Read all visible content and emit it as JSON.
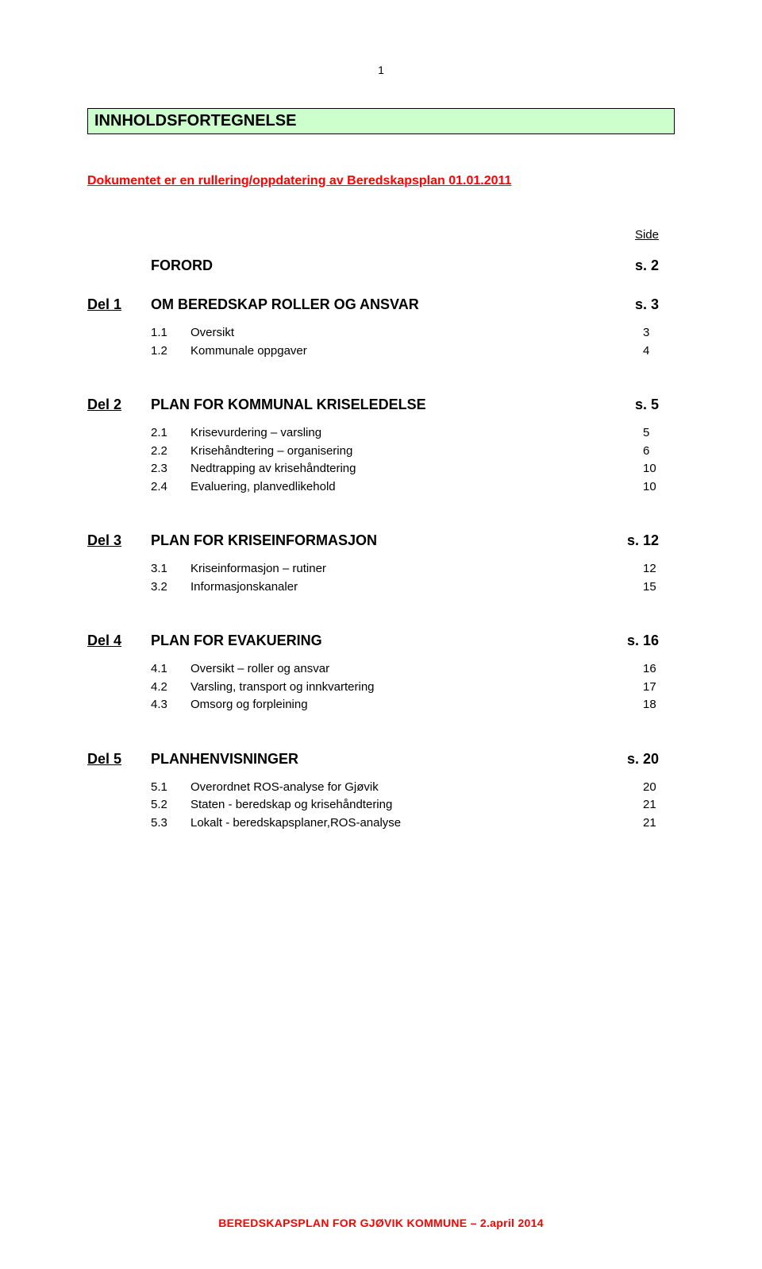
{
  "page_number": "1",
  "title": "INNHOLDSFORTEGNELSE",
  "subtitle": "Dokumentet er en rullering/oppdatering av Beredskapsplan 01.01.2011",
  "side_label": "Side",
  "forord": {
    "title": "FORORD",
    "page": "s.  2"
  },
  "sections": [
    {
      "del": "Del 1",
      "title": "OM BEREDSKAP ROLLER OG ANSVAR",
      "page": "s.  3",
      "items": [
        {
          "num": "1.1",
          "text": "Oversikt",
          "page": "3"
        },
        {
          "num": "1.2",
          "text": "Kommunale oppgaver",
          "page": "4"
        }
      ]
    },
    {
      "del": "Del 2",
      "title": "PLAN FOR KOMMUNAL KRISELEDELSE",
      "page": "s.   5",
      "items": [
        {
          "num": "2.1",
          "text": "Krisevurdering – varsling",
          "page": "5"
        },
        {
          "num": "2.2",
          "text": "Krisehåndtering – organisering",
          "page": "6"
        },
        {
          "num": "2.3",
          "text": "Nedtrapping av krisehåndtering",
          "page": "10"
        },
        {
          "num": "2.4",
          "text": "Evaluering, planvedlikehold",
          "page": "10"
        }
      ]
    },
    {
      "del": "Del 3",
      "title": "PLAN FOR KRISEINFORMASJON",
      "page": "s. 12",
      "items": [
        {
          "num": "3.1",
          "text": "Kriseinformasjon – rutiner",
          "page": "12"
        },
        {
          "num": "3.2",
          "text": "Informasjonskanaler",
          "page": "15"
        }
      ]
    },
    {
      "del": "Del 4",
      "title": "PLAN FOR EVAKUERING",
      "page": "s. 16",
      "items": [
        {
          "num": "4.1",
          "text": "Oversikt – roller og ansvar",
          "page": "16"
        },
        {
          "num": "4.2",
          "text": "Varsling, transport og innkvartering",
          "page": "17"
        },
        {
          "num": "4.3",
          "text": "Omsorg og forpleining",
          "page": "18"
        }
      ]
    },
    {
      "del": "Del 5",
      "title": "PLANHENVISNINGER",
      "page": "s. 20",
      "items": [
        {
          "num": "5.1",
          "text": "Overordnet ROS-analyse for Gjøvik",
          "page": "20"
        },
        {
          "num": "5.2",
          "text": "Staten - beredskap og krisehåndtering",
          "page": "21"
        },
        {
          "num": "5.3",
          "text": "Lokalt - beredskapsplaner,ROS-analyse",
          "page": "21"
        }
      ]
    }
  ],
  "footer": "BEREDSKAPSPLAN FOR GJØVIK KOMMUNE – 2.april 2014",
  "colors": {
    "title_box_bg": "#ccffcc",
    "title_box_border": "#000000",
    "subtitle_color": "#ff0000",
    "footer_color": "#ff0000",
    "text_color": "#000000",
    "background": "#ffffff"
  },
  "typography": {
    "font_family": "Arial, Helvetica, sans-serif",
    "title_fontsize": 20,
    "section_fontsize": 18,
    "subitem_fontsize": 15,
    "footer_fontsize": 14
  }
}
